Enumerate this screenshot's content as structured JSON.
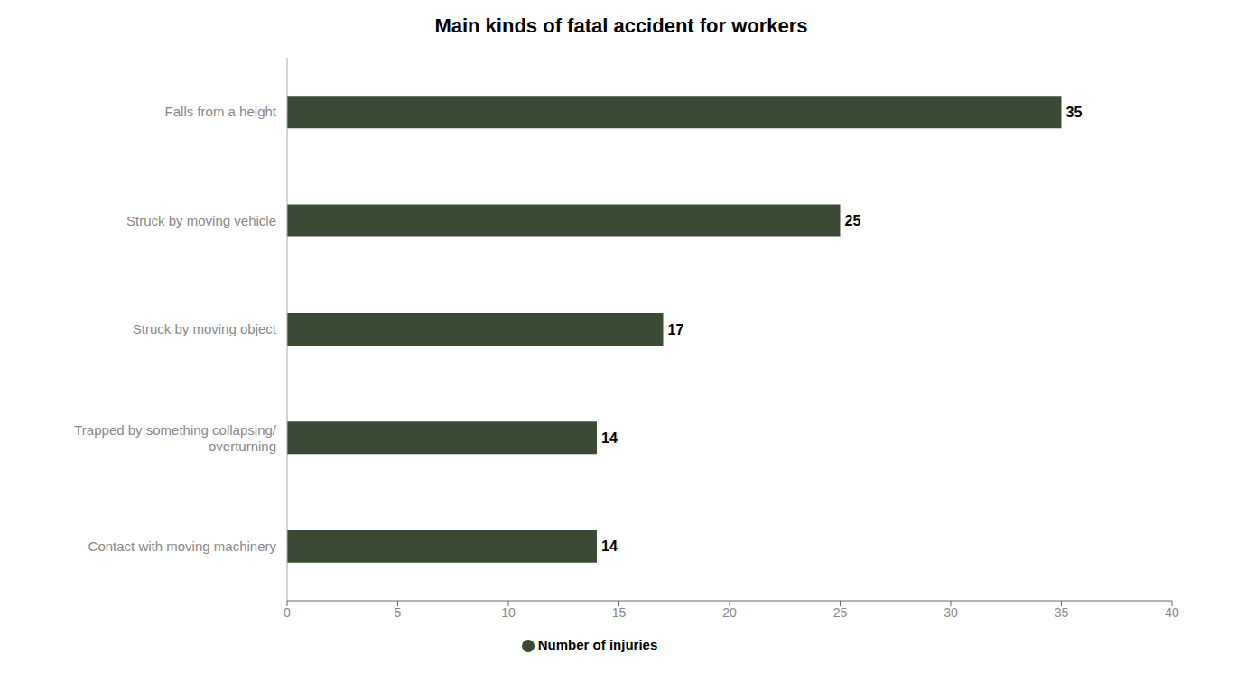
{
  "chart_data": {
    "type": "bar",
    "orientation": "horizontal",
    "title": "Main kinds of fatal accident for workers",
    "categories": [
      "Contact with moving machinery",
      "Trapped by something collapsing/\noverturning",
      "Struck by moving object",
      "Struck by moving vehicle",
      "Falls from a height"
    ],
    "series": [
      {
        "name": "Number of injuries",
        "color": "#3b4a35",
        "values": [
          14,
          14,
          17,
          25,
          35
        ]
      }
    ],
    "xlim": [
      0,
      40
    ],
    "xticks": [
      0,
      5,
      10,
      15,
      20,
      25,
      30,
      35,
      40
    ],
    "data_labels": true,
    "grid": false,
    "legend": "bottom"
  }
}
